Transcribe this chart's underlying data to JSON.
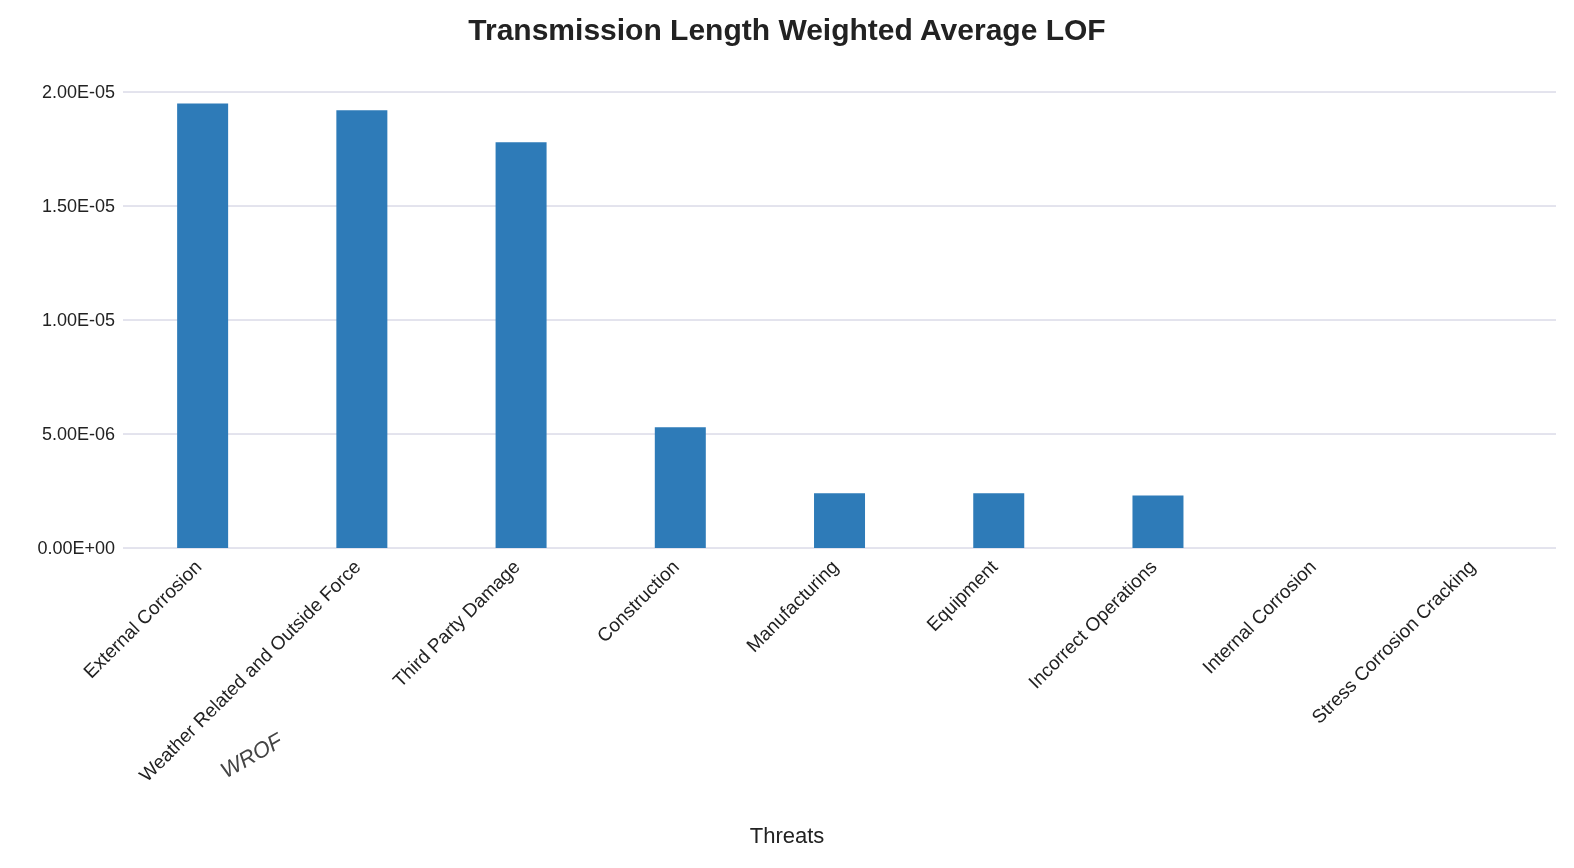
{
  "chart_data": {
    "type": "bar",
    "title": "Transmission Length Weighted Average LOF",
    "xlabel": "Threats",
    "categories": [
      "External Corrosion",
      "Weather Related and Outside Force",
      "Third Party Damage",
      "Construction",
      "Manufacturing",
      "Equipment",
      "Incorrect Operations",
      "Internal Corrosion",
      "Stress Corrosion Cracking"
    ],
    "values": [
      1.95e-05,
      1.92e-05,
      1.78e-05,
      5.3e-06,
      2.4e-06,
      2.4e-06,
      2.3e-06,
      0,
      0
    ],
    "color": "#2e7bb8",
    "ylim": [
      0,
      2e-05
    ],
    "yticks": [
      {
        "value": 0,
        "label": "0.00E+00"
      },
      {
        "value": 5e-06,
        "label": "5.00E-06"
      },
      {
        "value": 1e-05,
        "label": "1.00E-05"
      },
      {
        "value": 1.5e-05,
        "label": "1.50E-05"
      },
      {
        "value": 2e-05,
        "label": "2.00E-05"
      }
    ],
    "grid": "y",
    "annotations": [
      "WROF"
    ]
  }
}
